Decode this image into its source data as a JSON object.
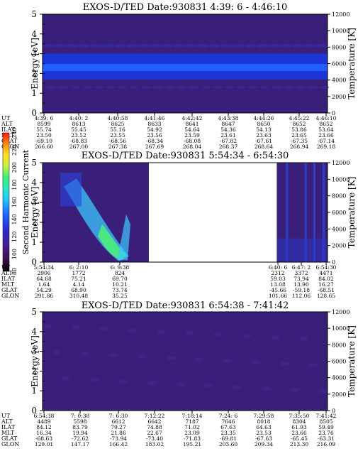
{
  "chart_data": [
    {
      "type": "heatmap",
      "title": "EXOS-D/TED   Date:930831  4:39: 6 - 4:46:10",
      "ylabel": "Energy [eV]",
      "ylabel_right": "Temperature [K]",
      "ylim": [
        0,
        5
      ],
      "yticks": [
        "0",
        "1",
        "2",
        "3",
        "4",
        "5"
      ],
      "ylim_right": [
        0,
        12000
      ],
      "yticks_right": [
        "0",
        "2000",
        "4000",
        "6000",
        "8000",
        "10000",
        "12000"
      ],
      "orbit_rows": [
        {
          "name": "UT",
          "values": [
            "4:39: 6",
            "4:40: 2",
            "4:40:58",
            "4:41:46",
            "4:42:42",
            "4:43:38",
            "4:44:26",
            "4:45:22",
            "4:46:10"
          ]
        },
        {
          "name": "ALT",
          "values": [
            "8599",
            "8613",
            "8625",
            "8633",
            "8641",
            "8647",
            "8650",
            "8652",
            "8652"
          ]
        },
        {
          "name": "ILAT",
          "values": [
            "55.74",
            "55.45",
            "55.16",
            "54.92",
            "54.64",
            "54.36",
            "54.13",
            "53.86",
            "53.64"
          ]
        },
        {
          "name": "MLT",
          "values": [
            "23.50",
            "23.52",
            "23.55",
            "23.56",
            "23.59",
            "23.61",
            "23.63",
            "23.65",
            "23.66"
          ]
        },
        {
          "name": "GLAT",
          "values": [
            "-69.10",
            "-68.83",
            "-68.56",
            "-68.34",
            "-68.08",
            "-67.82",
            "-67.61",
            "-67.35",
            "-67.14"
          ]
        },
        {
          "name": "GLON",
          "values": [
            "266.60",
            "267.00",
            "267.38",
            "267.69",
            "268.04",
            "268.37",
            "268.64",
            "268.94",
            "269.18"
          ]
        }
      ],
      "band_energy_ev": [
        1.7,
        3.0
      ],
      "band_peak_ev": 2.3
    },
    {
      "type": "heatmap",
      "title": "EXOS-D/TED   Date:930831  5:54:34 - 6:54:30",
      "ylabel": "Energy [eV]",
      "ylabel_right": "Temperature [K]",
      "ylim": [
        0,
        5
      ],
      "yticks": [
        "0",
        "1",
        "2",
        "3",
        "4",
        "5"
      ],
      "ylim_right": [
        0,
        12000
      ],
      "yticks_right": [
        "0",
        "2000",
        "4000",
        "6000",
        "8000",
        "10000",
        "12000"
      ],
      "colorbar": {
        "label": "Second Harmonic Current",
        "ticks": [
          "80",
          "100",
          "120",
          "140",
          "160",
          "180",
          "200",
          "220",
          "240"
        ],
        "range": [
          80,
          240
        ]
      },
      "orbit_rows": [
        {
          "name": "UT",
          "values": [
            "5:54:34",
            "6: 2:10",
            "6: 9:38",
            "6:40: 6",
            "6:47: 2",
            "6:54:30"
          ]
        },
        {
          "name": "ALT",
          "values": [
            "2906",
            "1772",
            "824",
            "2312",
            "3372",
            "4471"
          ]
        },
        {
          "name": "ILAT",
          "values": [
            "64.68",
            "75.21",
            "69.70",
            "59.03",
            "73.94",
            "84.02"
          ]
        },
        {
          "name": "MLT",
          "values": [
            "1.64",
            "4.14",
            "10.21",
            "13.08",
            "13.90",
            "16.27"
          ]
        },
        {
          "name": "GLAT",
          "values": [
            "54.29",
            "68.90",
            "73.74",
            "-45.66",
            "-59.18",
            "-68.51"
          ]
        },
        {
          "name": "GLON",
          "values": [
            "291.86",
            "310.48",
            "35.25",
            "101.66",
            "112.06",
            "128.65"
          ]
        }
      ]
    },
    {
      "type": "heatmap",
      "title": "EXOS-D/TED   Date:930831  6:54:38 - 7:41:42",
      "ylabel": "Energy [eV]",
      "ylabel_right": "Temperature [K]",
      "ylim": [
        0,
        5
      ],
      "yticks": [
        "0",
        "1",
        "2",
        "3",
        "4",
        "5"
      ],
      "ylim_right": [
        0,
        12000
      ],
      "yticks_right": [
        "0",
        "2000",
        "4000",
        "6000",
        "8000",
        "10000",
        "12000"
      ],
      "orbit_rows": [
        {
          "name": "UT",
          "values": [
            "6:54:38",
            "7: 0:38",
            "7: 6:30",
            "7:12:22",
            "7:18:14",
            "7:24: 6",
            "7:29:58",
            "7:35:50",
            "7:41:42"
          ]
        },
        {
          "name": "ALT",
          "values": [
            "4489",
            "5598",
            "6612",
            "6642",
            "7187",
            "7646",
            "8018",
            "8304",
            "8505"
          ]
        },
        {
          "name": "ILAT",
          "values": [
            "84.12",
            "83.79",
            "79.27",
            "74.88",
            "71.02",
            "67.63",
            "64.63",
            "61.93",
            "59.49"
          ]
        },
        {
          "name": "MLT",
          "values": [
            "16.34",
            "19.94",
            "21.86",
            "22.67",
            "23.09",
            "23.35",
            "23.53",
            "23.66",
            "23.76"
          ]
        },
        {
          "name": "GLAT",
          "values": [
            "-68.63",
            "-72.62",
            "-73.94",
            "-73.40",
            "-71.83",
            "-69.81",
            "-67.63",
            "-65.45",
            "-63.31"
          ]
        },
        {
          "name": "GLON",
          "values": [
            "129.01",
            "147.17",
            "166.42",
            "183.02",
            "195.21",
            "203.60",
            "209.34",
            "213.30",
            "216.09"
          ]
        }
      ]
    }
  ],
  "colors": {
    "background_fill": "#3a1f7a",
    "band_outer": "#1c35d8",
    "band_inner": "#1f60ff",
    "spike_cyan": "#3cc8ff",
    "spike_green": "#4ef07a"
  }
}
